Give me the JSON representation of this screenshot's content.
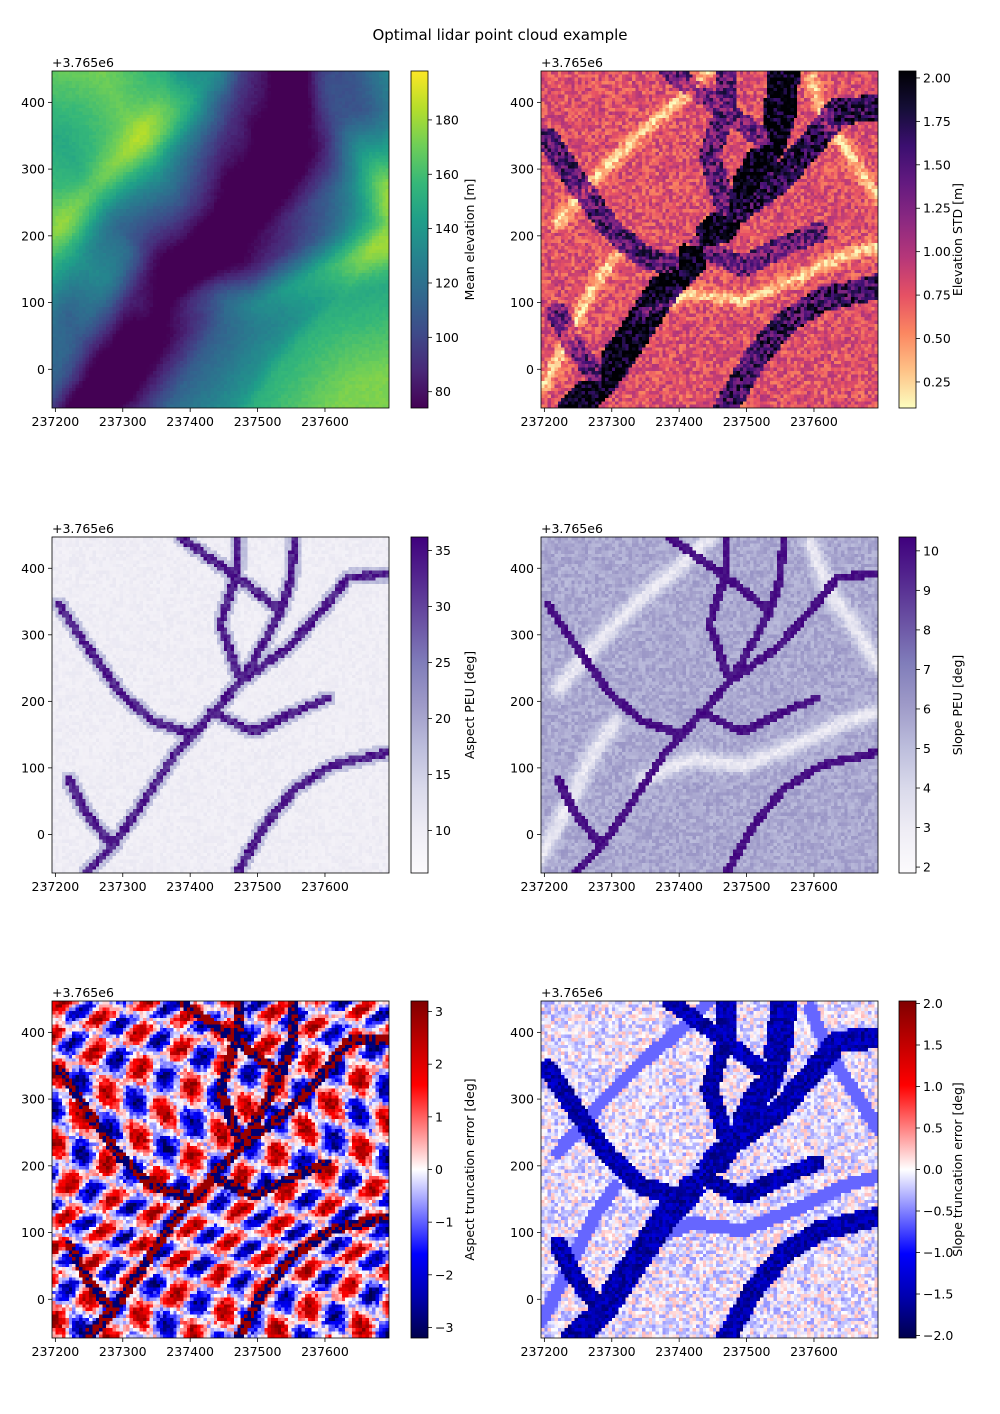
{
  "figure": {
    "title": "Optimal lidar point cloud example"
  },
  "chart_data": [
    {
      "type": "heatmap",
      "title": "",
      "xlabel": "",
      "ylabel": "",
      "xlim": [
        237195,
        237695
      ],
      "ylim": [
        -58,
        447
      ],
      "xticks": [
        237200,
        237300,
        237400,
        237500,
        237600
      ],
      "yticks": [
        0,
        100,
        200,
        300,
        400
      ],
      "y_offset_label": "+3.765e6",
      "colormap": "viridis",
      "colorbar": {
        "label": "Mean elevation [m]",
        "range": [
          74,
          198
        ],
        "ticks": [
          80,
          100,
          120,
          140,
          160,
          180
        ]
      }
    },
    {
      "type": "heatmap",
      "title": "",
      "xlabel": "",
      "ylabel": "",
      "xlim": [
        237195,
        237695
      ],
      "ylim": [
        -58,
        447
      ],
      "xticks": [
        237200,
        237300,
        237400,
        237500,
        237600
      ],
      "yticks": [
        0,
        100,
        200,
        300,
        400
      ],
      "y_offset_label": "+3.765e6",
      "colormap": "magma_r",
      "colorbar": {
        "label": "Elevation STD [m]",
        "range": [
          0.1,
          2.04
        ],
        "ticks": [
          0.25,
          0.5,
          0.75,
          1.0,
          1.25,
          1.5,
          1.75,
          2.0
        ]
      }
    },
    {
      "type": "heatmap",
      "title": "",
      "xlabel": "",
      "ylabel": "",
      "xlim": [
        237195,
        237695
      ],
      "ylim": [
        -58,
        447
      ],
      "xticks": [
        237200,
        237300,
        237400,
        237500,
        237600
      ],
      "yticks": [
        0,
        100,
        200,
        300,
        400
      ],
      "y_offset_label": "+3.765e6",
      "colormap": "Purples",
      "colorbar": {
        "label": "Aspect PEU [deg]",
        "range": [
          6.2,
          36.2
        ],
        "ticks": [
          10,
          15,
          20,
          25,
          30,
          35
        ]
      }
    },
    {
      "type": "heatmap",
      "title": "",
      "xlabel": "",
      "ylabel": "",
      "xlim": [
        237195,
        237695
      ],
      "ylim": [
        -58,
        447
      ],
      "xticks": [
        237200,
        237300,
        237400,
        237500,
        237600
      ],
      "yticks": [
        0,
        100,
        200,
        300,
        400
      ],
      "y_offset_label": "+3.765e6",
      "colormap": "Purples",
      "colorbar": {
        "label": "Slope PEU [deg]",
        "range": [
          1.85,
          10.35
        ],
        "ticks": [
          2,
          3,
          4,
          5,
          6,
          7,
          8,
          9,
          10
        ]
      }
    },
    {
      "type": "heatmap",
      "title": "",
      "xlabel": "",
      "ylabel": "",
      "xlim": [
        237195,
        237695
      ],
      "ylim": [
        -58,
        447
      ],
      "xticks": [
        237200,
        237300,
        237400,
        237500,
        237600
      ],
      "yticks": [
        0,
        100,
        200,
        300,
        400
      ],
      "y_offset_label": "+3.765e6",
      "colormap": "seismic",
      "colorbar": {
        "label": "Aspect truncation error [deg]",
        "range": [
          -3.2,
          3.2
        ],
        "ticks": [
          -3,
          -2,
          -1,
          0,
          1,
          2,
          3
        ]
      }
    },
    {
      "type": "heatmap",
      "title": "",
      "xlabel": "",
      "ylabel": "",
      "xlim": [
        237195,
        237695
      ],
      "ylim": [
        -58,
        447
      ],
      "xticks": [
        237200,
        237300,
        237400,
        237500,
        237600
      ],
      "yticks": [
        0,
        100,
        200,
        300,
        400
      ],
      "y_offset_label": "+3.765e6",
      "colormap": "seismic",
      "colorbar": {
        "label": "Slope truncation error [deg]",
        "range": [
          -2.03,
          2.03
        ],
        "ticks": [
          -2.0,
          -1.5,
          -1.0,
          -0.5,
          0.0,
          0.5,
          1.0,
          1.5,
          2.0
        ]
      }
    }
  ]
}
